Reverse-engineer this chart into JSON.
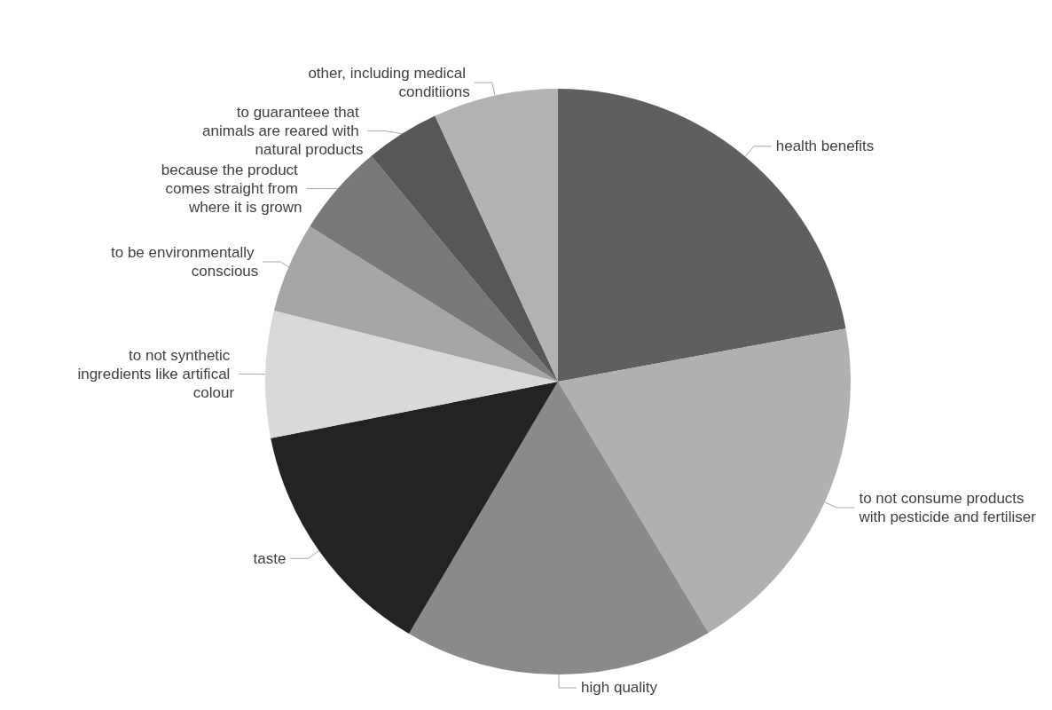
{
  "chart_data": {
    "type": "pie",
    "categories": [
      "health benefits",
      "to not consume products with pesticide and fertiliser",
      "high quality",
      "taste",
      "to not synthetic ingredients like artifical colour",
      "to be environmentally conscious",
      "because the product comes straight from where it is grown",
      "to guaranteee that animals are reared with natural products",
      "other, including medical conditiions"
    ],
    "values": [
      22.1,
      19.3,
      17.1,
      13.4,
      7.0,
      5.0,
      5.1,
      4.1,
      6.9
    ],
    "colors": [
      "#5f5f5f",
      "#b0b0b0",
      "#8a8a8a",
      "#232323",
      "#d9d9d9",
      "#a6a6a6",
      "#787878",
      "#575757",
      "#b2b2b2"
    ],
    "legend": false
  }
}
